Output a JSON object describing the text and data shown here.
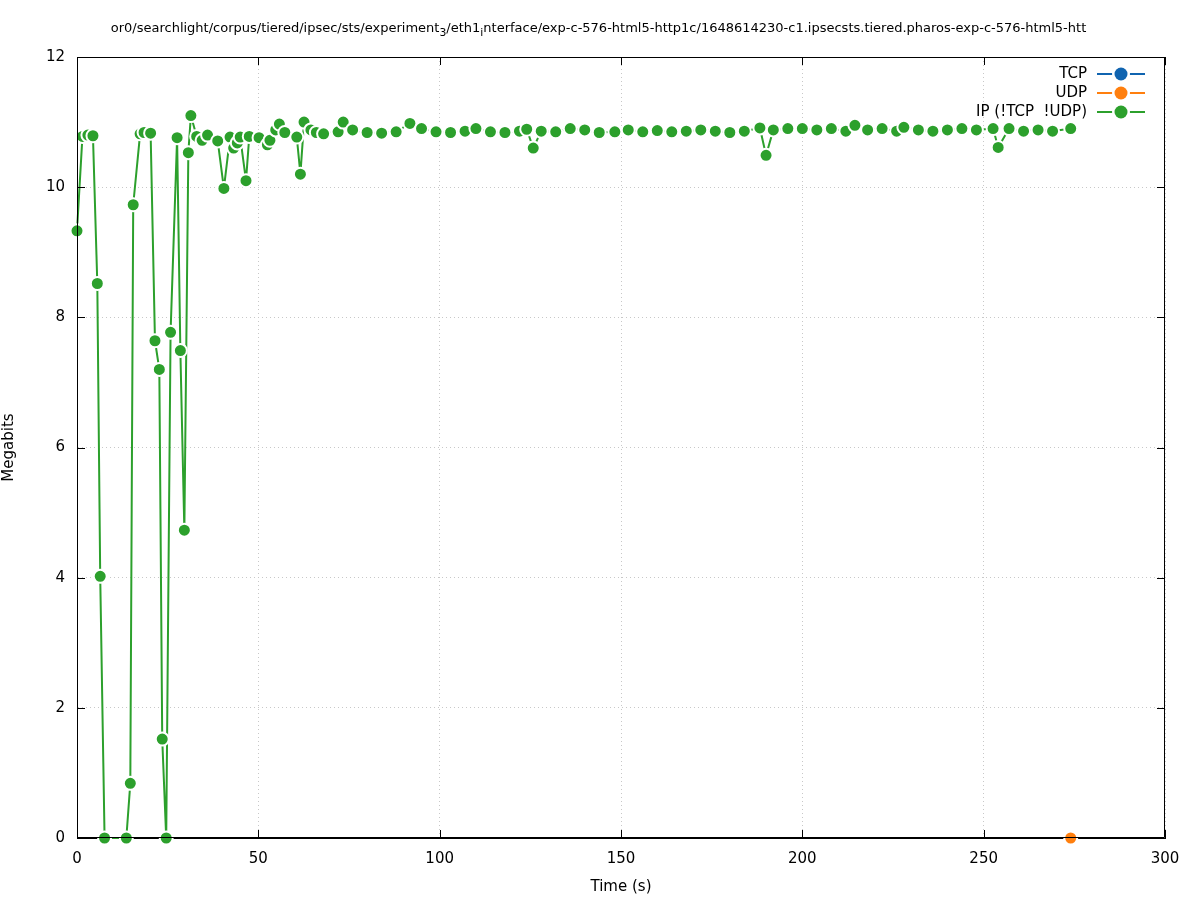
{
  "chart_data": {
    "type": "line",
    "title": "or0/searchlight/corpus/tiered/ipsec/sts/experiment$_{3}$/eth1$_{i}$nterface/exp-c-576-html5-http1c/1648614230-c1.ipsecsts.tiered.pharos-exp-c-576-html5-htt",
    "xlabel": "Time (s)",
    "ylabel": "Megabits",
    "xlim": [
      0,
      300
    ],
    "xticks": [
      0,
      50,
      100,
      150,
      200,
      250,
      300
    ],
    "ylim": [
      0,
      12
    ],
    "yticks": [
      0,
      2,
      4,
      6,
      8,
      10,
      12
    ],
    "grid": true,
    "legend": "top right",
    "marker": "circle",
    "line_style": "solid",
    "series": [
      {
        "name": "TCP",
        "color": "#1064b0"
      },
      {
        "name": "UDP",
        "color": "#ff7f0e",
        "x": [
          274
        ],
        "values": [
          0
        ]
      },
      {
        "name": "IP (!TCP  !UDP)",
        "color": "#2ca02c",
        "x": [
          0,
          1.5,
          3,
          4.4,
          5.6,
          6.4,
          7.6,
          13.6,
          14.7,
          15.5,
          17.4,
          18.5,
          20.3,
          21.5,
          22.7,
          23.5,
          24.6,
          25.8,
          27.6,
          28.5,
          29.6,
          30.7,
          31.4,
          33,
          34.5,
          36,
          38.8,
          40.5,
          42.2,
          43.2,
          44.2,
          45,
          46.6,
          47.5,
          50.2,
          52.5,
          53.2,
          54.8,
          55.8,
          57.3,
          60.6,
          61.6,
          62.6,
          64.5,
          66,
          68,
          72,
          73.4,
          76,
          80,
          84,
          88,
          91.8,
          95,
          99,
          103,
          107,
          110,
          114,
          118,
          122,
          124,
          125.8,
          128,
          132,
          136,
          140,
          144,
          148.3,
          152,
          156,
          160,
          164,
          168,
          172,
          176,
          180,
          184,
          188.3,
          190,
          192,
          196,
          200,
          204,
          208,
          212,
          214.5,
          218,
          222,
          226,
          228,
          232,
          236,
          240,
          244,
          248,
          252.6,
          254,
          257,
          261,
          265,
          269,
          274
        ],
        "values": [
          9.33,
          10.78,
          10.8,
          10.79,
          8.52,
          4.02,
          0,
          0,
          0.84,
          9.73,
          10.82,
          10.84,
          10.83,
          7.64,
          7.2,
          1.52,
          0,
          7.77,
          10.76,
          7.49,
          4.73,
          10.53,
          11.1,
          10.78,
          10.72,
          10.8,
          10.71,
          9.98,
          10.77,
          10.6,
          10.68,
          10.77,
          10.1,
          10.78,
          10.76,
          10.65,
          10.72,
          10.88,
          10.97,
          10.84,
          10.77,
          10.2,
          11.0,
          10.88,
          10.84,
          10.82,
          10.85,
          11.0,
          10.88,
          10.84,
          10.83,
          10.85,
          10.98,
          10.9,
          10.85,
          10.84,
          10.86,
          10.9,
          10.85,
          10.84,
          10.86,
          10.89,
          10.6,
          10.86,
          10.85,
          10.9,
          10.88,
          10.84,
          10.85,
          10.88,
          10.85,
          10.87,
          10.85,
          10.86,
          10.88,
          10.86,
          10.84,
          10.86,
          10.91,
          10.49,
          10.88,
          10.9,
          10.9,
          10.88,
          10.9,
          10.86,
          10.95,
          10.88,
          10.9,
          10.86,
          10.92,
          10.88,
          10.86,
          10.88,
          10.9,
          10.88,
          10.9,
          10.61,
          10.9,
          10.86,
          10.88,
          10.86,
          10.9
        ]
      }
    ]
  }
}
